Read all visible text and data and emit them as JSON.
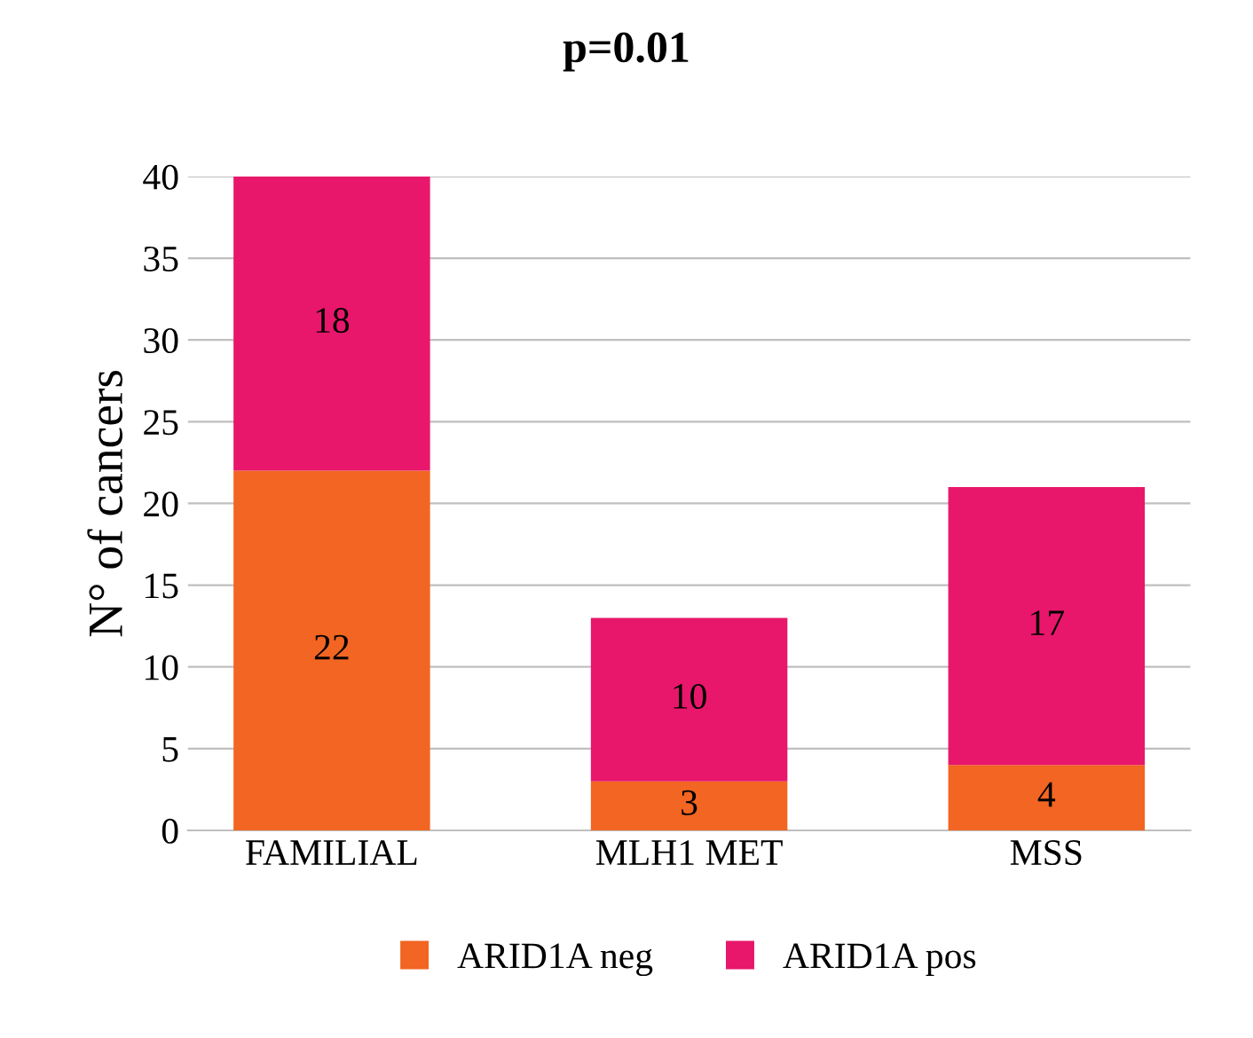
{
  "chart_data": {
    "type": "bar",
    "title": "p=0.01",
    "ylabel": "N° of cancers",
    "categories": [
      "FAMILIAL",
      "MLH1 MET",
      "MSS"
    ],
    "series": [
      {
        "name": "ARID1A neg",
        "color": "#f26522",
        "values": [
          22,
          3,
          4
        ]
      },
      {
        "name": "ARID1A pos",
        "color": "#e8176b",
        "values": [
          18,
          10,
          17
        ]
      }
    ],
    "stacked": true,
    "data_labels": true,
    "ylim": [
      0,
      40
    ],
    "yticks": [
      0,
      5,
      10,
      15,
      20,
      25,
      30,
      35,
      40
    ],
    "grid": "y",
    "legend": "bottom"
  }
}
